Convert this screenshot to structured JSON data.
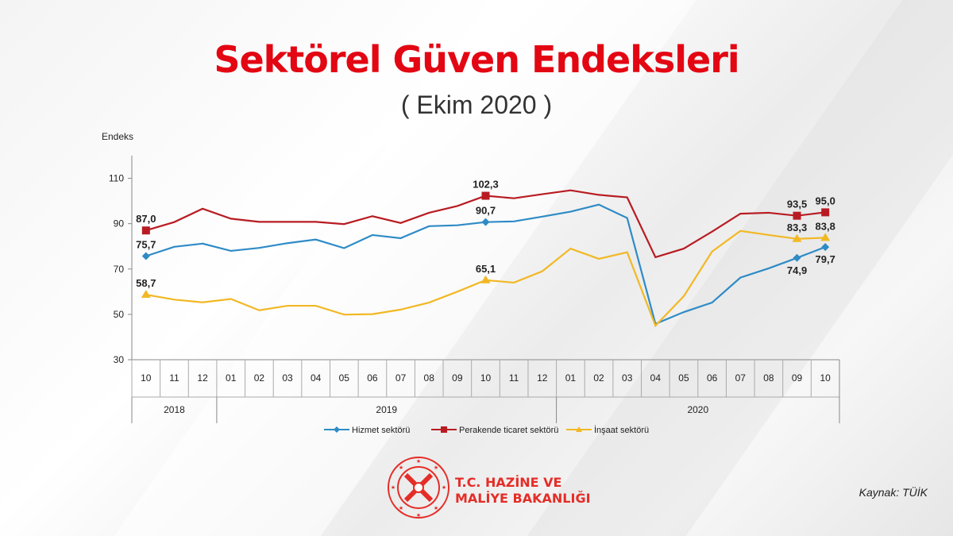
{
  "header": {
    "title": "Sektörel Güven Endeksleri",
    "subtitle": "( Ekim 2020 )"
  },
  "footer": {
    "source": "Kaynak: TÜİK",
    "logo_line1": "T.C. HAZİNE VE",
    "logo_line2": "MALİYE BAKANLIĞI"
  },
  "chart_data": {
    "type": "line",
    "ylabel": "Endeks",
    "ylim": [
      30,
      120
    ],
    "yticks": [
      30,
      50,
      70,
      90,
      110
    ],
    "categories": [
      "10",
      "11",
      "12",
      "01",
      "02",
      "03",
      "04",
      "05",
      "06",
      "07",
      "08",
      "09",
      "10",
      "11",
      "12",
      "01",
      "02",
      "03",
      "04",
      "05",
      "06",
      "07",
      "08",
      "09",
      "10"
    ],
    "years": [
      {
        "label": "2018",
        "span": 3
      },
      {
        "label": "2019",
        "span": 12
      },
      {
        "label": "2020",
        "span": 10
      }
    ],
    "grid": false,
    "legend": "bottom",
    "series": [
      {
        "name": "Hizmet sektörü",
        "color": "#2e8bc6",
        "marker": "diamond",
        "values": [
          75.7,
          79.8,
          81.2,
          78.0,
          79.3,
          81.4,
          83.0,
          79.2,
          85.0,
          83.6,
          88.9,
          89.3,
          90.7,
          91.0,
          93.1,
          95.3,
          98.4,
          92.5,
          45.8,
          51.0,
          55.2,
          66.2,
          70.3,
          74.9,
          79.7
        ],
        "labels": {
          "0": "75,7",
          "12": "90,7",
          "23": "74,9",
          "24": "79,7"
        },
        "label_below": [
          23,
          24
        ]
      },
      {
        "name": "Perakende ticaret sektörü",
        "color": "#b81c22",
        "marker": "square",
        "values": [
          87.0,
          90.7,
          96.6,
          92.2,
          90.8,
          90.8,
          90.8,
          89.8,
          93.3,
          90.3,
          94.8,
          97.8,
          102.3,
          101.2,
          103.0,
          104.7,
          102.7,
          101.6,
          75.2,
          79.0,
          86.5,
          94.4,
          94.8,
          93.5,
          95.0
        ],
        "labels": {
          "0": "87,0",
          "12": "102,3",
          "23": "93,5",
          "24": "95,0"
        },
        "label_below": []
      },
      {
        "name": "İnşaat sektörü",
        "color": "#f2b824",
        "marker": "triangle",
        "values": [
          58.7,
          56.5,
          55.3,
          56.8,
          51.8,
          53.8,
          53.8,
          49.9,
          50.1,
          52.1,
          55.2,
          60.0,
          65.1,
          64.0,
          69.0,
          79.0,
          74.5,
          77.4,
          45.0,
          58.0,
          77.7,
          86.8,
          85.0,
          83.3,
          83.8
        ],
        "labels": {
          "0": "58,7",
          "12": "65,1",
          "23": "83,3",
          "24": "83,8"
        },
        "label_below": []
      }
    ]
  }
}
